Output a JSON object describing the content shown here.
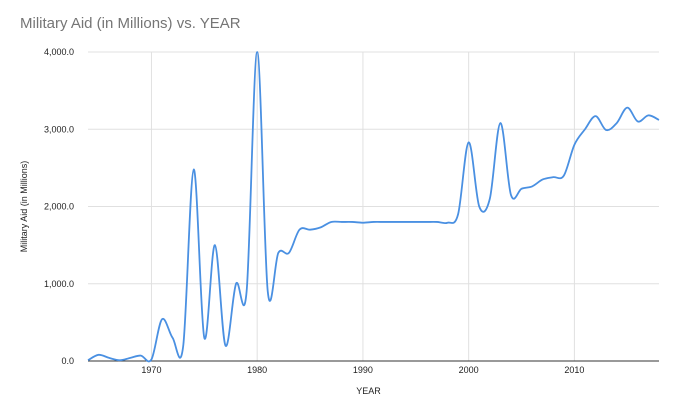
{
  "chart_data": {
    "type": "line",
    "title": "Military Aid (in Millions) vs. YEAR",
    "xlabel": "YEAR",
    "ylabel": "Military Aid (in Millions)",
    "xlim": [
      1964,
      2018
    ],
    "ylim": [
      0,
      4000
    ],
    "x_ticks": [
      1970,
      1980,
      1990,
      2000,
      2010
    ],
    "y_ticks": [
      {
        "value": 0,
        "label": "0.0"
      },
      {
        "value": 1000,
        "label": "1,000.0"
      },
      {
        "value": 2000,
        "label": "2,000.0"
      },
      {
        "value": 3000,
        "label": "3,000.0"
      },
      {
        "value": 4000,
        "label": "4,000.0"
      }
    ],
    "grid": true,
    "line_color": "#4a90e2",
    "series": [
      {
        "name": "",
        "x": [
          1964,
          1965,
          1966,
          1967,
          1968,
          1969,
          1970,
          1971,
          1972,
          1973,
          1974,
          1975,
          1976,
          1977,
          1978,
          1979,
          1980,
          1981,
          1982,
          1983,
          1984,
          1985,
          1986,
          1987,
          1988,
          1989,
          1990,
          1991,
          1992,
          1993,
          1994,
          1995,
          1996,
          1997,
          1998,
          1999,
          2000,
          2001,
          2002,
          2003,
          2004,
          2005,
          2006,
          2007,
          2008,
          2009,
          2010,
          2011,
          2012,
          2013,
          2014,
          2015,
          2016,
          2017,
          2018
        ],
        "values": [
          10,
          80,
          40,
          10,
          40,
          70,
          20,
          540,
          300,
          190,
          2480,
          300,
          1500,
          200,
          1000,
          900,
          4000,
          900,
          1400,
          1400,
          1700,
          1700,
          1730,
          1800,
          1800,
          1800,
          1790,
          1800,
          1800,
          1800,
          1800,
          1800,
          1800,
          1800,
          1790,
          1900,
          2830,
          2000,
          2100,
          3080,
          2150,
          2230,
          2260,
          2350,
          2380,
          2400,
          2800,
          3000,
          3170,
          2990,
          3080,
          3280,
          3100,
          3180,
          3120
        ]
      }
    ]
  }
}
